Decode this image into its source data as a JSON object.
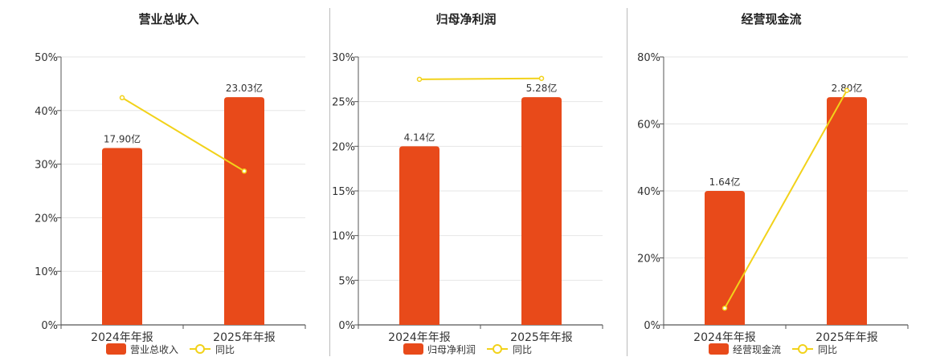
{
  "colors": {
    "bar": "#E84A1A",
    "line": "#F2D21A",
    "grid": "#e6e6e6",
    "axis": "#555555",
    "text": "#333333"
  },
  "chart_data": [
    {
      "type": "bar",
      "title": "营业总收入",
      "categories": [
        "2024年年报",
        "2025年年报"
      ],
      "ylim": [
        0,
        50
      ],
      "yticks": [
        "0%",
        "10%",
        "20%",
        "30%",
        "40%",
        "50%"
      ],
      "series": [
        {
          "name": "营业总收入",
          "type": "bar",
          "values": [
            33,
            42.5
          ],
          "labels": [
            "17.90亿",
            "23.03亿"
          ]
        },
        {
          "name": "同比",
          "type": "line",
          "values": [
            42.4,
            28.7
          ]
        }
      ],
      "legend": "bottom",
      "grid": true
    },
    {
      "type": "bar",
      "title": "归母净利润",
      "categories": [
        "2024年年报",
        "2025年年报"
      ],
      "ylim": [
        0,
        30
      ],
      "yticks": [
        "0%",
        "5%",
        "10%",
        "15%",
        "20%",
        "25%",
        "30%"
      ],
      "series": [
        {
          "name": "归母净利润",
          "type": "bar",
          "values": [
            20,
            25.5
          ],
          "labels": [
            "4.14亿",
            "5.28亿"
          ]
        },
        {
          "name": "同比",
          "type": "line",
          "values": [
            27.5,
            27.6
          ]
        }
      ],
      "legend": "bottom",
      "grid": true
    },
    {
      "type": "bar",
      "title": "经营现金流",
      "categories": [
        "2024年年报",
        "2025年年报"
      ],
      "ylim": [
        0,
        80
      ],
      "yticks": [
        "0%",
        "20%",
        "40%",
        "60%",
        "80%"
      ],
      "series": [
        {
          "name": "经营现金流",
          "type": "bar",
          "values": [
            40,
            68
          ],
          "labels": [
            "1.64亿",
            "2.80亿"
          ]
        },
        {
          "name": "同比",
          "type": "line",
          "values": [
            5,
            70
          ]
        }
      ],
      "legend": "bottom",
      "grid": true
    }
  ]
}
